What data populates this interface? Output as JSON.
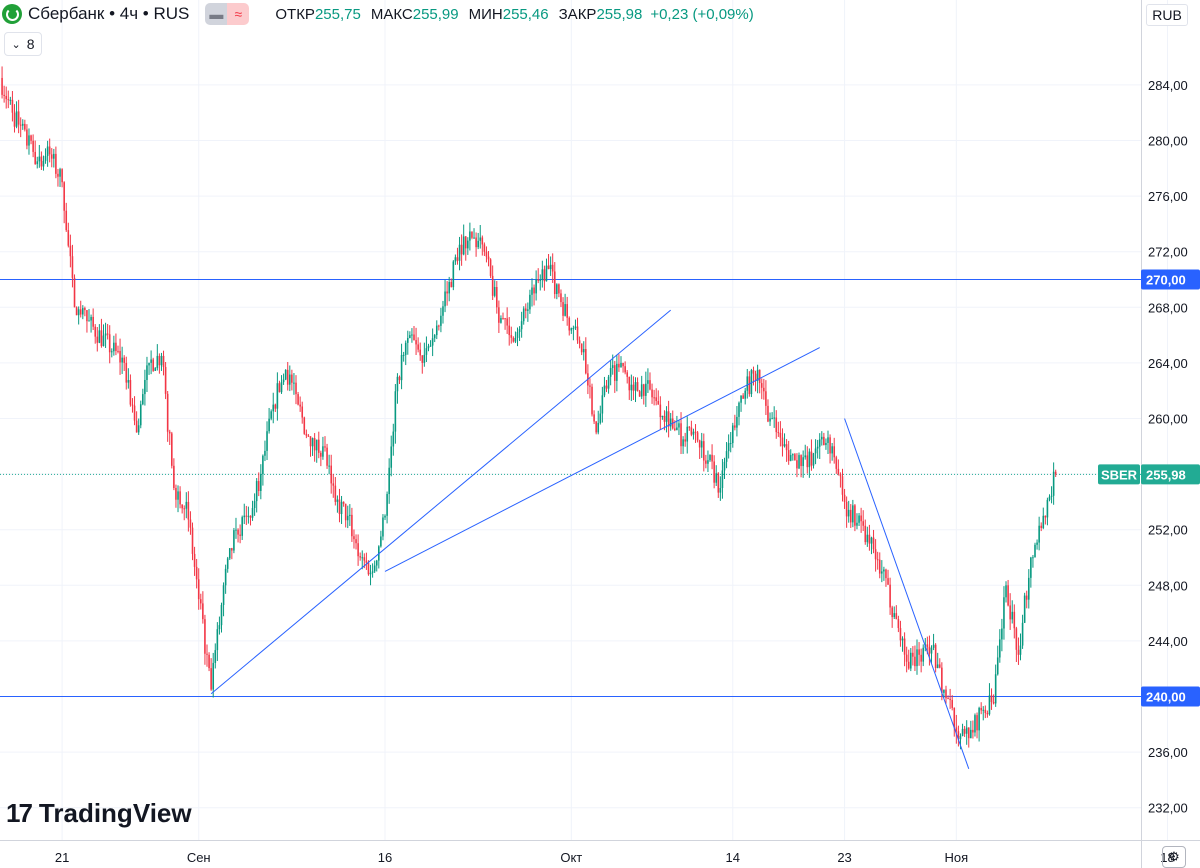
{
  "header": {
    "title": "Сбербанк • 4ч • RUS",
    "open_label": "ОТКР",
    "open": "255,75",
    "high_label": "МАКС",
    "high": "255,99",
    "low_label": "МИН",
    "low": "255,46",
    "close_label": "ЗАКР",
    "close": "255,98",
    "change": "+0,23 (+0,09%)"
  },
  "indicator_count": "8",
  "currency": "RUB",
  "branding": "TradingView",
  "colors": {
    "up": "#089981",
    "down": "#f23645",
    "lines": "#2962ff",
    "accent": "#22ab94"
  },
  "chart_data": {
    "type": "candlestick",
    "ylim": [
      229,
      289
    ],
    "y_ticks": [
      "232,00",
      "236,00",
      "240,00",
      "244,00",
      "248,00",
      "252,00",
      "256,00",
      "260,00",
      "264,00",
      "268,00",
      "272,00",
      "276,00",
      "280,00",
      "284,00"
    ],
    "x_ticks": [
      "21",
      "Сен",
      "16",
      "Окт",
      "14",
      "23",
      "Ноя",
      "18"
    ],
    "price_tag": {
      "label": "SBER",
      "value": "255,98",
      "y": 255.98
    },
    "horizontal_levels": [
      {
        "y": 270,
        "label": "270,00"
      },
      {
        "y": 240,
        "label": "240,00"
      }
    ],
    "trendlines": [
      {
        "p1": [
          "02.09",
          240.2
        ],
        "p2": [
          "09.10",
          267.8
        ]
      },
      {
        "p1": [
          "16.09",
          249.0
        ],
        "p2": [
          "21.10",
          265.1
        ]
      },
      {
        "p1": [
          "23.10",
          260.0
        ],
        "p2": [
          "02.11",
          234.8
        ]
      }
    ],
    "close_path": [
      [
        "16.08",
        284.5
      ],
      [
        "17.08",
        282.0
      ],
      [
        "19.08",
        278.5
      ],
      [
        "20.08",
        279.0
      ],
      [
        "21.08",
        277.0
      ],
      [
        "22.08",
        268.0
      ],
      [
        "23.08",
        267.0
      ],
      [
        "26.08",
        264.0
      ],
      [
        "27.08",
        259.0
      ],
      [
        "28.08",
        264.0
      ],
      [
        "29.08",
        264.5
      ],
      [
        "30.08",
        255.0
      ],
      [
        "31.08",
        254.0
      ],
      [
        "01.09",
        247.0
      ],
      [
        "02.09",
        240.5
      ],
      [
        "03.09",
        248.0
      ],
      [
        "04.09",
        252.0
      ],
      [
        "05.09",
        253.0
      ],
      [
        "06.09",
        256.0
      ],
      [
        "07.09",
        261.0
      ],
      [
        "08.09",
        263.5
      ],
      [
        "09.09",
        261.0
      ],
      [
        "10.09",
        258.0
      ],
      [
        "11.09",
        258.0
      ],
      [
        "12.09",
        254.0
      ],
      [
        "13.09",
        253.0
      ],
      [
        "14.09",
        250.0
      ],
      [
        "15.09",
        249.0
      ],
      [
        "16.09",
        253.0
      ],
      [
        "17.09",
        263.0
      ],
      [
        "18.09",
        266.0
      ],
      [
        "19.09",
        264.0
      ],
      [
        "20.09",
        266.0
      ],
      [
        "21.09",
        269.0
      ],
      [
        "22.09",
        272.5
      ],
      [
        "23.09",
        273.0
      ],
      [
        "24.09",
        272.0
      ],
      [
        "25.09",
        268.0
      ],
      [
        "26.09",
        266.0
      ],
      [
        "27.09",
        267.0
      ],
      [
        "28.09",
        269.0
      ],
      [
        "29.09",
        271.0
      ],
      [
        "30.09",
        269.0
      ],
      [
        "01.10",
        266.5
      ],
      [
        "02.10",
        265.0
      ],
      [
        "03.10",
        259.0
      ],
      [
        "04.10",
        263.0
      ],
      [
        "05.10",
        264.0
      ],
      [
        "06.10",
        262.0
      ],
      [
        "07.10",
        262.5
      ],
      [
        "08.10",
        261.0
      ],
      [
        "09.10",
        260.0
      ],
      [
        "10.10",
        258.5
      ],
      [
        "11.10",
        259.0
      ],
      [
        "12.10",
        257.0
      ],
      [
        "13.10",
        255.0
      ],
      [
        "14.10",
        259.5
      ],
      [
        "15.10",
        262.0
      ],
      [
        "16.10",
        263.5
      ],
      [
        "17.10",
        260.0
      ],
      [
        "18.10",
        258.0
      ],
      [
        "19.10",
        257.0
      ],
      [
        "20.10",
        256.5
      ],
      [
        "21.10",
        258.5
      ],
      [
        "22.10",
        258.0
      ],
      [
        "23.10",
        254.0
      ],
      [
        "24.10",
        252.5
      ],
      [
        "25.10",
        251.0
      ],
      [
        "26.10",
        249.0
      ],
      [
        "27.10",
        246.0
      ],
      [
        "28.10",
        242.5
      ],
      [
        "29.10",
        243.0
      ],
      [
        "30.10",
        243.5
      ],
      [
        "31.10",
        240.5
      ],
      [
        "01.11",
        237.5
      ],
      [
        "02.11",
        237.0
      ],
      [
        "03.11",
        239.0
      ],
      [
        "04.11",
        239.5
      ],
      [
        "05.11",
        248.0
      ],
      [
        "06.11",
        243.0
      ],
      [
        "07.11",
        250.0
      ],
      [
        "08.11",
        253.0
      ],
      [
        "09.11",
        255.98
      ]
    ]
  }
}
